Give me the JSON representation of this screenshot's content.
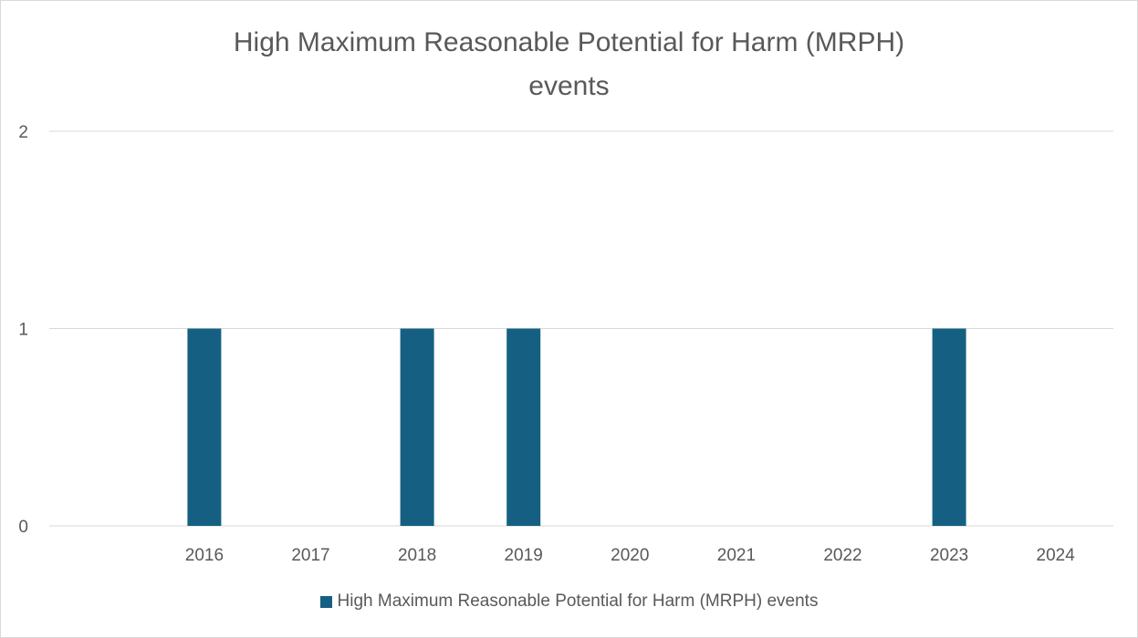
{
  "chart_data": {
    "type": "bar",
    "title_lines": [
      "High Maximum Reasonable Potential for Harm (MRPH)",
      "events"
    ],
    "categories": [
      "2016",
      "2017",
      "2018",
      "2019",
      "2020",
      "2021",
      "2022",
      "2023",
      "2024"
    ],
    "series": [
      {
        "name": "High Maximum Reasonable Potential for Harm (MRPH) events",
        "values": [
          1,
          0,
          1,
          1,
          0,
          0,
          0,
          1,
          0
        ],
        "color": "#156082"
      }
    ],
    "y_ticks": [
      "0",
      "1",
      "2"
    ],
    "ylim": [
      0,
      2
    ],
    "grid": true,
    "gridline_color": "#d9d9d9",
    "text_color": "#595959",
    "legend_position": "bottom"
  }
}
